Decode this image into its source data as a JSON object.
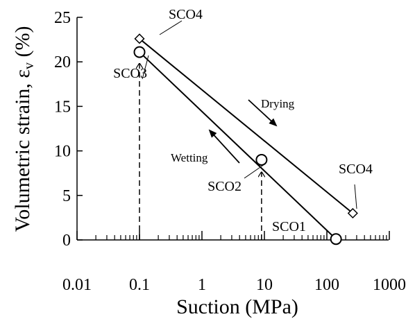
{
  "chart_data": {
    "type": "line",
    "xlabel": "Suction (MPa)",
    "ylabel": "Volumetric strain, ε",
    "ylabel_subscript": "v",
    "ylabel_unit": " (%)",
    "x_scale": "log",
    "xlim": [
      0.01,
      1000
    ],
    "ylim": [
      0,
      25
    ],
    "grid": false,
    "x_ticks": [
      {
        "value": 0.01,
        "label": "0.01"
      },
      {
        "value": 0.1,
        "label": "0.1"
      },
      {
        "value": 1,
        "label": "1"
      },
      {
        "value": 10,
        "label": "10"
      },
      {
        "value": 100,
        "label": "100"
      },
      {
        "value": 1000,
        "label": "1000"
      }
    ],
    "y_ticks": [
      {
        "value": 0,
        "label": "0"
      },
      {
        "value": 5,
        "label": "5"
      },
      {
        "value": 10,
        "label": "10"
      },
      {
        "value": 15,
        "label": "15"
      },
      {
        "value": 20,
        "label": "20"
      },
      {
        "value": 25,
        "label": "25"
      }
    ],
    "series": [
      {
        "marker": "diamond",
        "points": [
          {
            "x": 0.1,
            "y": 22.6,
            "label": "SCO4"
          },
          {
            "x": 260,
            "y": 3.0,
            "label": "SCO4"
          }
        ]
      },
      {
        "marker": "circle",
        "points": [
          {
            "x": 0.1,
            "y": 21.1,
            "label": "SCO3"
          },
          {
            "x": 9,
            "y": 9.0,
            "label": "SCO2"
          },
          {
            "x": 140,
            "y": 0.1,
            "label": "SCO1"
          }
        ]
      }
    ],
    "dashed_guides": [
      {
        "x": 0.1,
        "y_from": 0,
        "y_to": 19.8
      },
      {
        "x": 9,
        "y_from": 0,
        "y_to": 7.6
      }
    ],
    "annotations": {
      "drying": "Drying",
      "wetting": "Wetting"
    }
  }
}
